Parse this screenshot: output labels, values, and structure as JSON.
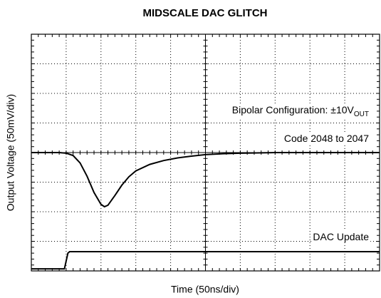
{
  "chart_data": {
    "type": "line",
    "title": "MIDSCALE DAC GLITCH",
    "xlabel": "Time (50ns/div)",
    "ylabel": "Output Voltage (50mV/div)",
    "annotations": [
      {
        "text": "Bipolar Configuration: ±10V",
        "subscript": "OUT"
      },
      {
        "text": "Code 2048 to 2047"
      }
    ],
    "xlim": [
      0,
      10
    ],
    "ylim": [
      -4,
      4
    ],
    "xticks": [
      0,
      1,
      2,
      3,
      4,
      5,
      6,
      7,
      8,
      9,
      10
    ],
    "yticks": [
      -4,
      -3,
      -2,
      -1,
      0,
      1,
      2,
      3,
      4
    ],
    "grid": true,
    "color": "#000000",
    "series": [
      {
        "color": "#000000",
        "x": [
          0,
          0.8,
          1.0,
          1.2,
          1.4,
          1.6,
          1.8,
          2.0,
          2.1,
          2.2,
          2.4,
          2.6,
          2.8,
          3.0,
          3.4,
          3.8,
          4.2,
          4.6,
          5.0,
          5.5,
          6.0,
          7,
          8,
          10
        ],
        "values": [
          0,
          0,
          -0.02,
          -0.1,
          -0.35,
          -0.8,
          -1.35,
          -1.75,
          -1.83,
          -1.78,
          -1.45,
          -1.1,
          -0.82,
          -0.62,
          -0.4,
          -0.27,
          -0.18,
          -0.12,
          -0.07,
          -0.04,
          -0.02,
          0,
          0,
          0
        ]
      },
      {
        "name": "DAC Update",
        "color": "#000000",
        "x": [
          0,
          0.95,
          1.05,
          1.1,
          10
        ],
        "values": [
          -3.93,
          -3.93,
          -3.4,
          -3.35,
          -3.35
        ]
      }
    ]
  }
}
